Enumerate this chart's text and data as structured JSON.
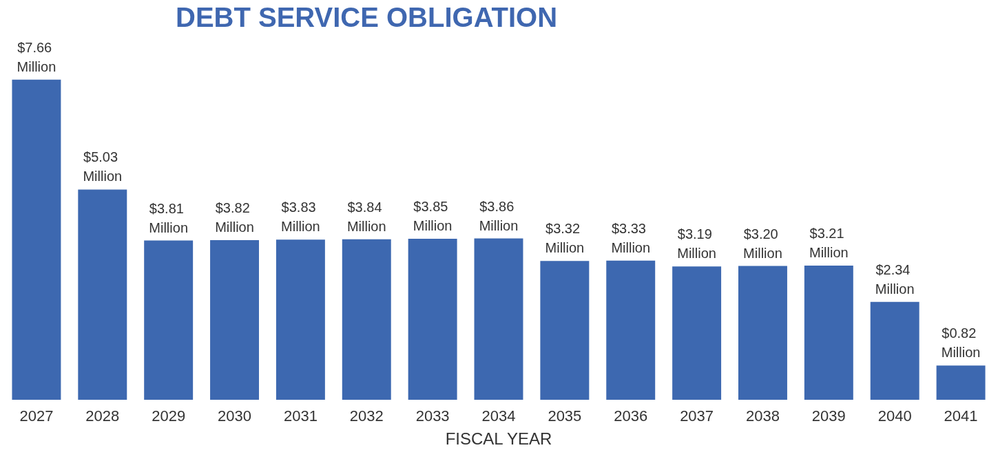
{
  "chart_data": {
    "type": "bar",
    "title": "DEBT SERVICE OBLIGATION",
    "xlabel": "FISCAL YEAR",
    "categories": [
      "2027",
      "2028",
      "2029",
      "2030",
      "2031",
      "2032",
      "2033",
      "2034",
      "2035",
      "2036",
      "2037",
      "2038",
      "2039",
      "2040",
      "2041"
    ],
    "values": [
      7.66,
      5.03,
      3.81,
      3.82,
      3.83,
      3.84,
      3.85,
      3.86,
      3.32,
      3.33,
      3.19,
      3.2,
      3.21,
      2.34,
      0.82
    ],
    "value_labels": [
      "$7.66 Million",
      "$5.03 Million",
      "$3.81 Million",
      "$3.82 Million",
      "$3.83 Million",
      "$3.84 Million",
      "$3.85 Million",
      "$3.86 Million",
      "$3.32 Million",
      "$3.33 Million",
      "$3.19 Million",
      "$3.20 Million",
      "$3.21 Million",
      "$2.34 Million",
      "$0.82 Million"
    ],
    "color": "#3d68b0",
    "grid": false
  }
}
